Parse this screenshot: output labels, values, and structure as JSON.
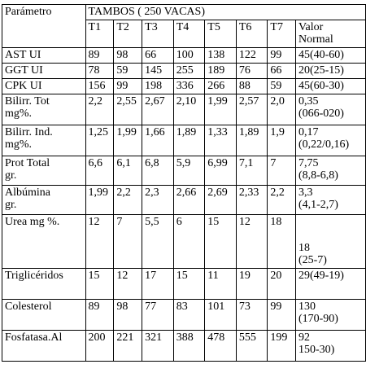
{
  "table": {
    "header": {
      "param_label": "Parámetro",
      "group_label": "TAMBOS ( 250 VACAS)",
      "columns": [
        "T1",
        "T2",
        "T3",
        "T4",
        "T5",
        "T6",
        "T7"
      ],
      "normal_label": "Valor\nNormal"
    },
    "rows": [
      {
        "param": "AST  UI",
        "values": [
          "89",
          "98",
          "66",
          "100",
          "138",
          "122",
          "99"
        ],
        "normal": "45(40-60)"
      },
      {
        "param": "GGT UI",
        "values": [
          "78",
          "59",
          "145",
          "255",
          "189",
          "76",
          "66"
        ],
        "normal": "20(25-15)"
      },
      {
        "param": "CPK  UI",
        "values": [
          "156",
          "99",
          "198",
          "336",
          "266",
          "88",
          "59"
        ],
        "normal": "45(60-30)"
      },
      {
        "param": "Bilirr.  Tot\nmg%.",
        "values": [
          "2,2",
          "2,55",
          "2,67",
          "2,10",
          "1,99",
          "2,57",
          "2,0"
        ],
        "normal": "0,35\n(066-020)"
      },
      {
        "param": "Bilirr. Ind.\nmg%.",
        "values": [
          "1,25",
          "1,99",
          "1,66",
          "1,89",
          "1,33",
          "1,89",
          "1,9"
        ],
        "normal": "0,17\n(0,22/0,16)"
      },
      {
        "param": "Prot Total\ngr.",
        "values": [
          "6,6",
          "6,1",
          "6,8",
          "5,9",
          "6,99",
          "7,1",
          "7"
        ],
        "normal": "7,75\n(8,8-6,8)"
      },
      {
        "param": "Albúmina\ngr.",
        "values": [
          "1,99",
          "2,2",
          "2,3",
          "2,66",
          "2,69",
          "2,33",
          "2,2"
        ],
        "normal": "3,3\n(4,1-2,7)"
      },
      {
        "param": "Urea mg %.",
        "values": [
          "12",
          "7",
          "5,5",
          "6",
          "15",
          "12",
          "18"
        ],
        "normal": "18\n(25-7)"
      },
      {
        "param": "Triglicéridos",
        "values": [
          "15",
          "12",
          "17",
          "15",
          "11",
          "19",
          "20"
        ],
        "normal": "29(49-19)"
      },
      {
        "param": "Colesterol",
        "values": [
          "89",
          "98",
          "77",
          "83",
          "101",
          "73",
          "99"
        ],
        "normal": "130\n(170-90)"
      },
      {
        "param": "Fosfatasa.Al",
        "values": [
          "200",
          "221",
          "321",
          "388",
          "478",
          "555",
          "199"
        ],
        "normal": "92\n150-30)"
      }
    ]
  }
}
